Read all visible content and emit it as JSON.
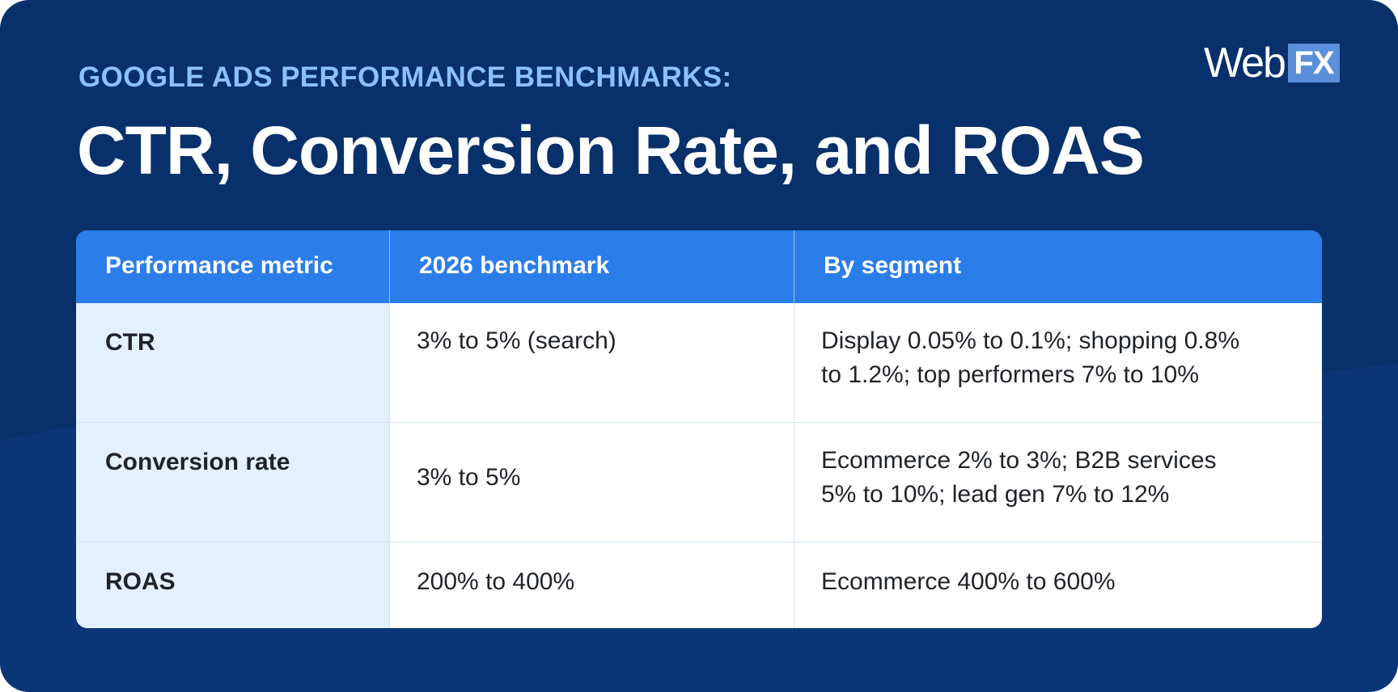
{
  "header": {
    "eyebrow": "GOOGLE ADS PERFORMANCE BENCHMARKS:",
    "title": "CTR, Conversion Rate, and ROAS"
  },
  "logo": {
    "web": "Web",
    "fx": "FX"
  },
  "table": {
    "columns": [
      "Performance metric",
      "2026 benchmark",
      "By segment"
    ],
    "rows": [
      {
        "metric": "CTR",
        "benchmark": "3% to 5% (search)",
        "segment_line1": "Display 0.05% to 0.1%; shopping 0.8%",
        "segment_line2": "to 1.2%; top performers 7% to 10%"
      },
      {
        "metric": "Conversion rate",
        "benchmark": "3% to 5%",
        "segment_line1": "Ecommerce 2% to 3%; B2B services",
        "segment_line2": "5% to 10%; lead gen 7% to 12%"
      },
      {
        "metric": "ROAS",
        "benchmark": "200% to 400%",
        "segment_line1": "Ecommerce 400% to 600%",
        "segment_line2": ""
      }
    ]
  },
  "colors": {
    "background": "#08306b",
    "eyebrow": "#8cc0ff",
    "table_header": "#2b7de9",
    "metric_column": "#e3f0fd",
    "logo_fx_box": "#5b8fd9"
  }
}
